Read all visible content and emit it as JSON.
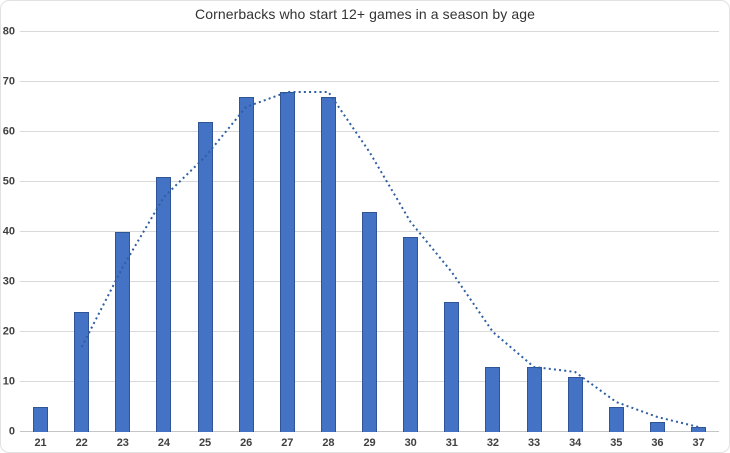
{
  "chart_data": {
    "type": "bar",
    "title": "Cornerbacks who start 12+ games in a season by age",
    "xlabel": "",
    "ylabel": "",
    "categories": [
      "21",
      "22",
      "23",
      "24",
      "25",
      "26",
      "27",
      "28",
      "29",
      "30",
      "31",
      "32",
      "33",
      "34",
      "35",
      "36",
      "37"
    ],
    "series": [
      {
        "name": "Cornerbacks starting 12+ games",
        "render": "bar",
        "values": [
          5,
          24,
          40,
          51,
          62,
          67,
          68,
          67,
          44,
          39,
          26,
          13,
          13,
          11,
          5,
          2,
          1
        ]
      },
      {
        "name": "Trend (dotted line)",
        "render": "dotted-line",
        "x": [
          "22",
          "23",
          "24",
          "25",
          "26",
          "27",
          "28",
          "29",
          "30",
          "31",
          "32",
          "33",
          "34",
          "35",
          "36",
          "37"
        ],
        "values": [
          17,
          33,
          47,
          55,
          65,
          68,
          68,
          56,
          42,
          32,
          20,
          13,
          12,
          6,
          3,
          1
        ]
      }
    ],
    "ylim": [
      0,
      80
    ],
    "ytick_interval": 10,
    "yticks": [
      0,
      10,
      20,
      30,
      40,
      50,
      60,
      70,
      80
    ],
    "grid": true,
    "legend": "none",
    "colors": {
      "bar_fill": "#4472c4",
      "bar_border": "#2f5597",
      "trendline": "#2e5fa3",
      "gridline": "#d9d9d9",
      "axis_line": "#c5c5c5",
      "tick_label": "#404040",
      "title": "#333333",
      "background": "#ffffff",
      "frame_border": "#e2e2e2"
    }
  }
}
